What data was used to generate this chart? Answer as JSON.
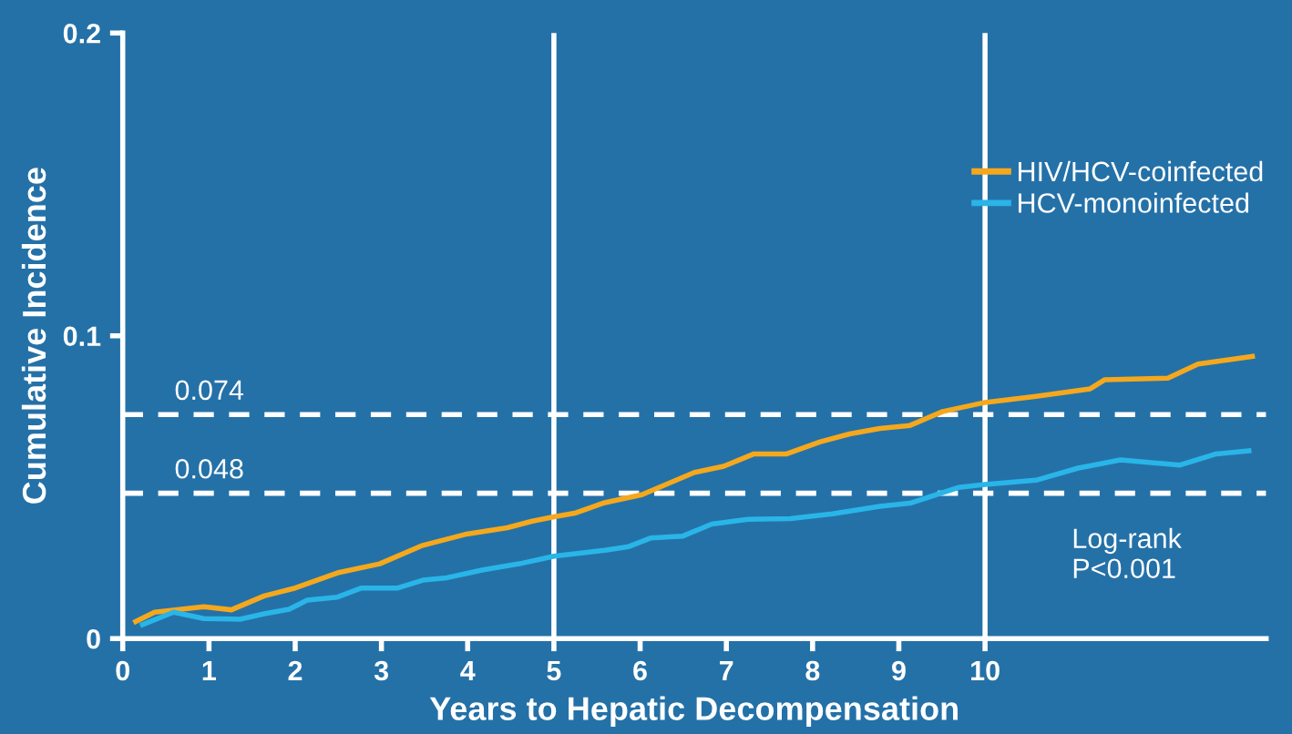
{
  "chart_data": {
    "type": "line",
    "xlabel": "Years to Hepatic Decompensation",
    "ylabel": "Cumulative Incidence",
    "xlim": [
      0,
      13.26
    ],
    "ylim": [
      0,
      0.2
    ],
    "xticks": [
      0,
      1,
      2,
      3,
      4,
      5,
      6,
      7,
      8,
      9,
      10
    ],
    "yticks": [
      0,
      0.1,
      0.2
    ],
    "grid": false,
    "legend": "top right",
    "line_style": "solid",
    "marker": "none",
    "series": [
      {
        "name": "HIV/HCV-coinfected",
        "color": "#f5a81c",
        "x": [
          0.15,
          0.37,
          0.94,
          1.26,
          1.64,
          2.0,
          2.49,
          2.98,
          3.48,
          3.97,
          4.46,
          4.75,
          5.0,
          5.24,
          5.59,
          6.02,
          6.63,
          6.97,
          7.32,
          7.7,
          8.09,
          8.43,
          8.78,
          9.13,
          9.51,
          10.0,
          10.59,
          11.22,
          11.39,
          12.12,
          12.47,
          13.1
        ],
        "values": [
          0.0056,
          0.0087,
          0.0105,
          0.0095,
          0.0141,
          0.0167,
          0.0217,
          0.0247,
          0.0308,
          0.0344,
          0.0366,
          0.0388,
          0.0402,
          0.0414,
          0.0449,
          0.0475,
          0.0549,
          0.0569,
          0.061,
          0.061,
          0.065,
          0.0676,
          0.0694,
          0.0704,
          0.075,
          0.078,
          0.08,
          0.0825,
          0.0855,
          0.086,
          0.0907,
          0.0932
        ]
      },
      {
        "name": "HCV-monoinfected",
        "color": "#29b5e8",
        "x": [
          0.23,
          0.59,
          0.94,
          1.36,
          1.64,
          1.93,
          2.14,
          2.49,
          2.77,
          3.19,
          3.48,
          3.76,
          4.18,
          4.6,
          5.0,
          5.59,
          5.87,
          6.12,
          6.49,
          6.83,
          7.25,
          7.74,
          8.23,
          8.78,
          9.13,
          9.69,
          10.0,
          10.59,
          11.08,
          11.57,
          12.26,
          12.68,
          13.06
        ],
        "values": [
          0.0046,
          0.0087,
          0.0066,
          0.0064,
          0.0082,
          0.0097,
          0.0127,
          0.0137,
          0.0167,
          0.0167,
          0.0193,
          0.0201,
          0.0227,
          0.0247,
          0.0272,
          0.0292,
          0.0304,
          0.0332,
          0.0338,
          0.0378,
          0.0394,
          0.0396,
          0.0412,
          0.0437,
          0.0447,
          0.0499,
          0.0509,
          0.0523,
          0.0563,
          0.059,
          0.0573,
          0.061,
          0.062
        ]
      }
    ],
    "ref_lines": [
      {
        "axis": "y",
        "value": 0.074,
        "label": "0.074",
        "line_style": "dashed",
        "color": "#ffffff"
      },
      {
        "axis": "y",
        "value": 0.048,
        "label": "0.048",
        "line_style": "dashed",
        "color": "#ffffff"
      },
      {
        "axis": "x",
        "value": 5,
        "line_style": "solid",
        "color": "#ffffff"
      },
      {
        "axis": "x",
        "value": 10,
        "line_style": "solid",
        "color": "#ffffff"
      }
    ],
    "annotations": [
      "Log-rank\nP<0.001"
    ]
  }
}
